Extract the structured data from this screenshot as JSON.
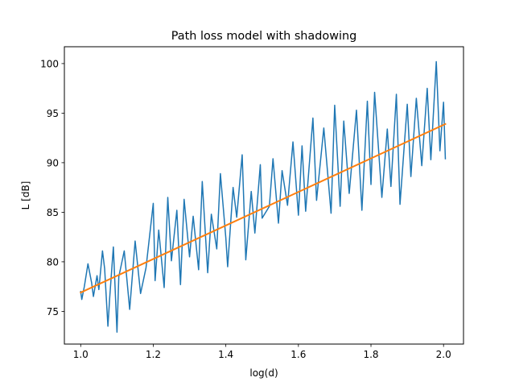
{
  "chart_data": {
    "type": "line",
    "title": "Path loss model with shadowing",
    "xlabel": "log(d)",
    "ylabel": "L [dB]",
    "xlim": [
      0.955,
      2.055
    ],
    "ylim": [
      71.7,
      101.7
    ],
    "xticks": [
      1.0,
      1.2,
      1.4,
      1.6,
      1.8,
      2.0
    ],
    "xtick_labels": [
      "1.0",
      "1.2",
      "1.4",
      "1.6",
      "1.8",
      "2.0"
    ],
    "yticks": [
      75,
      80,
      85,
      90,
      95,
      100
    ],
    "ytick_labels": [
      "75",
      "80",
      "85",
      "90",
      "95",
      "100"
    ],
    "grid": false,
    "legend": "none",
    "series": [
      {
        "color": "#1f77b4",
        "style": "noisy",
        "x": [
          1.0,
          1.003,
          1.01,
          1.02,
          1.03,
          1.035,
          1.045,
          1.05,
          1.06,
          1.066,
          1.075,
          1.08,
          1.09,
          1.1,
          1.105,
          1.12,
          1.135,
          1.15,
          1.165,
          1.18,
          1.2,
          1.205,
          1.215,
          1.23,
          1.24,
          1.25,
          1.265,
          1.275,
          1.285,
          1.3,
          1.31,
          1.325,
          1.335,
          1.35,
          1.36,
          1.375,
          1.385,
          1.4,
          1.405,
          1.42,
          1.43,
          1.445,
          1.455,
          1.47,
          1.48,
          1.495,
          1.5,
          1.52,
          1.53,
          1.545,
          1.555,
          1.57,
          1.585,
          1.6,
          1.61,
          1.62,
          1.64,
          1.65,
          1.67,
          1.69,
          1.7,
          1.715,
          1.725,
          1.74,
          1.76,
          1.775,
          1.79,
          1.8,
          1.81,
          1.83,
          1.845,
          1.855,
          1.87,
          1.88,
          1.9,
          1.91,
          1.925,
          1.94,
          1.955,
          1.965,
          1.98,
          1.99,
          2.0,
          2.005
        ],
        "y": [
          77,
          76.2,
          77.5,
          79.8,
          77.9,
          76.5,
          78.6,
          77.2,
          81.1,
          79.3,
          73.5,
          76.4,
          81.5,
          72.9,
          78.5,
          81.1,
          75.2,
          82.1,
          76.8,
          79.4,
          85.9,
          78.1,
          83.2,
          77.4,
          86.5,
          80.1,
          85.2,
          77.7,
          86.3,
          80.5,
          84.6,
          79.2,
          88.1,
          78.9,
          84.8,
          81.3,
          88.9,
          82.4,
          79.5,
          87.5,
          84.5,
          90.8,
          80.2,
          87.1,
          82.9,
          89.8,
          84.4,
          85.6,
          90.4,
          83.9,
          89.2,
          85.7,
          92.1,
          84.7,
          91.7,
          85.1,
          94.5,
          86.2,
          93.5,
          84.9,
          95.8,
          85.6,
          94.2,
          86.9,
          95.3,
          85.2,
          96.2,
          87.8,
          97.1,
          86.5,
          93.4,
          87.6,
          96.9,
          85.8,
          95.9,
          88.6,
          96.5,
          89.7,
          97.5,
          90.3,
          100.2,
          91.2,
          96.1,
          90.4
        ]
      },
      {
        "color": "#ff7f0e",
        "style": "model",
        "x": [
          1.0,
          2.005
        ],
        "y": [
          76.9,
          93.9
        ]
      }
    ]
  }
}
